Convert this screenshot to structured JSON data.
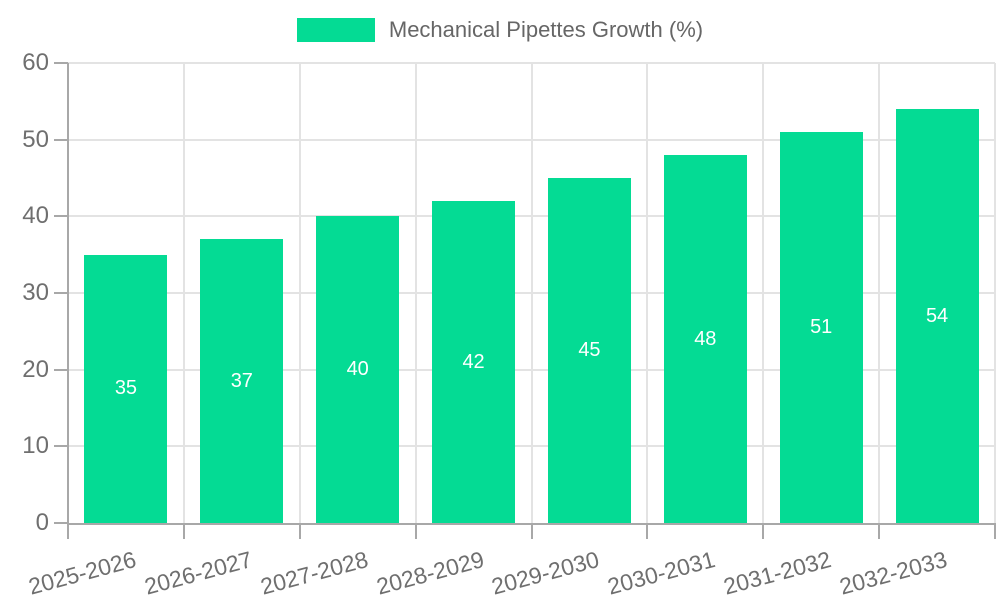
{
  "legend": {
    "items": [
      {
        "label": "Mechanical Pipettes Growth (%)",
        "color": "#04db94"
      }
    ]
  },
  "chart_data": {
    "type": "bar",
    "title": "Mechanical Pipettes Growth (%)",
    "categories": [
      "2025-2026",
      "2026-2027",
      "2027-2028",
      "2028-2029",
      "2029-2030",
      "2030-2031",
      "2031-2032",
      "2032-2033"
    ],
    "values": [
      35,
      37,
      40,
      42,
      45,
      48,
      51,
      54
    ],
    "series": [
      {
        "name": "Mechanical Pipettes Growth (%)",
        "values": [
          35,
          37,
          40,
          42,
          45,
          48,
          51,
          54
        ]
      }
    ],
    "value_labels": [
      "35",
      "37",
      "40",
      "42",
      "45",
      "48",
      "51",
      "54"
    ],
    "xlabel": "",
    "ylabel": "",
    "ylim": [
      0,
      60
    ],
    "yticks": [
      0,
      10,
      20,
      30,
      40,
      50,
      60
    ],
    "grid": true,
    "legend_position": "top",
    "x_tick_rotation_deg": -15,
    "bar_color": "#04db94",
    "value_label_color": "#ffffff"
  }
}
